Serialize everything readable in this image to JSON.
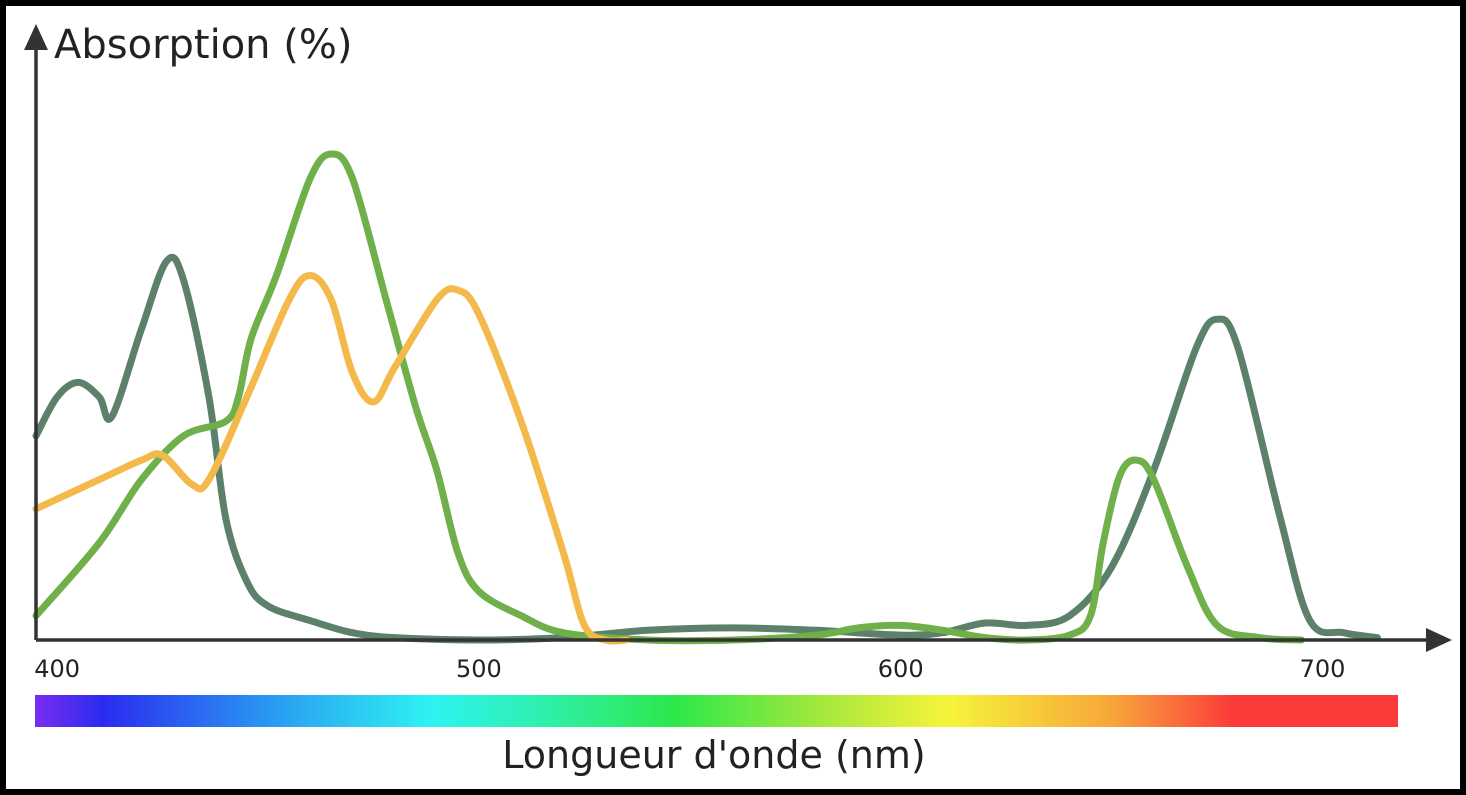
{
  "chart_data": {
    "type": "line",
    "ylabel": "Absorption (%)",
    "xlabel": "Longueur d'onde (nm)",
    "xticks": [
      "400",
      "500",
      "600",
      "700"
    ],
    "xlim": [
      395,
      725
    ],
    "ylim": [
      0,
      100
    ],
    "grid": false,
    "legend": "none",
    "spectrum_bar": true,
    "series": [
      {
        "color": "#5c806a",
        "points": [
          [
            395,
            42
          ],
          [
            400,
            50
          ],
          [
            405,
            53
          ],
          [
            410,
            50
          ],
          [
            413,
            46
          ],
          [
            420,
            64
          ],
          [
            426,
            78
          ],
          [
            430,
            74
          ],
          [
            436,
            50
          ],
          [
            440,
            25
          ],
          [
            445,
            12
          ],
          [
            450,
            7
          ],
          [
            460,
            4
          ],
          [
            470,
            1.5
          ],
          [
            480,
            0.5
          ],
          [
            500,
            0
          ],
          [
            520,
            0.5
          ],
          [
            540,
            2
          ],
          [
            560,
            2.5
          ],
          [
            580,
            2
          ],
          [
            600,
            1
          ],
          [
            610,
            1.5
          ],
          [
            620,
            3.5
          ],
          [
            630,
            3
          ],
          [
            640,
            5
          ],
          [
            650,
            15
          ],
          [
            660,
            35
          ],
          [
            670,
            60
          ],
          [
            675,
            66
          ],
          [
            680,
            60
          ],
          [
            690,
            25
          ],
          [
            697,
            4
          ],
          [
            705,
            1.5
          ],
          [
            713,
            0.5
          ]
        ]
      },
      {
        "color": "#6fb04a",
        "points": [
          [
            395,
            5
          ],
          [
            410,
            20
          ],
          [
            420,
            33
          ],
          [
            430,
            42
          ],
          [
            440,
            45
          ],
          [
            443,
            50
          ],
          [
            446,
            62
          ],
          [
            452,
            75
          ],
          [
            460,
            95
          ],
          [
            465,
            100
          ],
          [
            470,
            95
          ],
          [
            478,
            70
          ],
          [
            485,
            48
          ],
          [
            490,
            35
          ],
          [
            495,
            18
          ],
          [
            500,
            10
          ],
          [
            510,
            5
          ],
          [
            520,
            1.5
          ],
          [
            540,
            0
          ],
          [
            560,
            0
          ],
          [
            580,
            1
          ],
          [
            590,
            2.5
          ],
          [
            600,
            3
          ],
          [
            610,
            2
          ],
          [
            620,
            0.5
          ],
          [
            630,
            0
          ],
          [
            640,
            1
          ],
          [
            645,
            5
          ],
          [
            648,
            20
          ],
          [
            652,
            34
          ],
          [
            656,
            37
          ],
          [
            660,
            33
          ],
          [
            668,
            15
          ],
          [
            675,
            3
          ],
          [
            685,
            0.5
          ],
          [
            695,
            0
          ]
        ]
      },
      {
        "color": "#f4b94b",
        "points": [
          [
            395,
            27
          ],
          [
            410,
            33
          ],
          [
            420,
            37
          ],
          [
            425,
            38
          ],
          [
            432,
            32
          ],
          [
            436,
            33
          ],
          [
            445,
            50
          ],
          [
            455,
            70
          ],
          [
            460,
            75
          ],
          [
            465,
            70
          ],
          [
            470,
            55
          ],
          [
            475,
            49
          ],
          [
            480,
            56
          ],
          [
            490,
            70
          ],
          [
            495,
            72
          ],
          [
            500,
            67
          ],
          [
            510,
            45
          ],
          [
            520,
            18
          ],
          [
            525,
            3
          ],
          [
            530,
            0
          ],
          [
            535,
            0
          ]
        ]
      }
    ]
  }
}
